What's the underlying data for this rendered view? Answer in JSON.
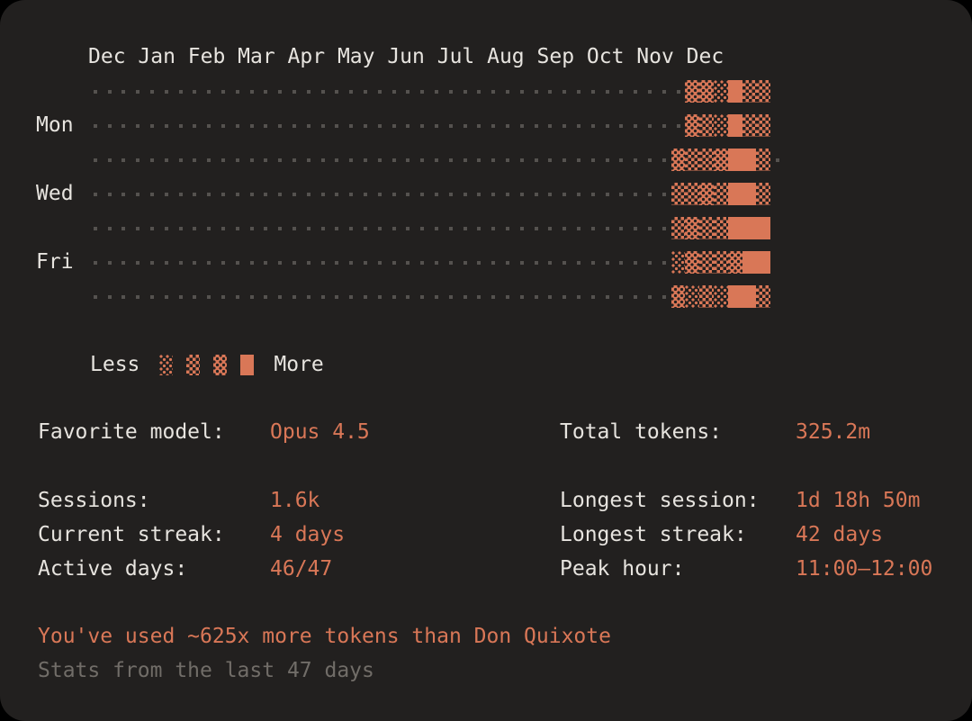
{
  "accent_color": "#d97757",
  "background_color": "#22201f",
  "chart_data": {
    "type": "heatmap",
    "title": "Activity heatmap of last 47 days, terminal-style with shade blocks",
    "month_labels": "Dec Jan Feb Mar Apr May Jun Jul Aug Sep Oct Nov Dec",
    "columns": 48,
    "level_scale": [
      "empty-dot",
      "light",
      "medium",
      "dark",
      "solid"
    ],
    "rows": [
      {
        "label": "",
        "dots": 42,
        "cells": [
          3,
          3,
          1,
          4,
          2,
          2
        ],
        "trailing_dots": 0
      },
      {
        "label": "Mon",
        "dots": 42,
        "cells": [
          3,
          2,
          1,
          4,
          2,
          2
        ],
        "trailing_dots": 0
      },
      {
        "label": "",
        "dots": 41,
        "cells": [
          3,
          2,
          2,
          3,
          4,
          4,
          2
        ],
        "trailing_dots": 1
      },
      {
        "label": "Wed",
        "dots": 41,
        "cells": [
          2,
          2,
          3,
          2,
          4,
          4,
          2
        ],
        "trailing_dots": 0
      },
      {
        "label": "",
        "dots": 41,
        "cells": [
          2,
          3,
          2,
          2,
          4,
          4,
          4
        ],
        "trailing_dots": 0
      },
      {
        "label": "Fri",
        "dots": 41,
        "cells": [
          1,
          3,
          2,
          2,
          3,
          4,
          4
        ],
        "trailing_dots": 0
      },
      {
        "label": "",
        "dots": 41,
        "cells": [
          3,
          1,
          2,
          1,
          4,
          4,
          2
        ],
        "trailing_dots": 0
      }
    ],
    "legend": {
      "less": "Less",
      "more": "More",
      "levels": [
        1,
        2,
        3,
        4
      ],
      "position": "below-left"
    }
  },
  "stats": {
    "rows": [
      {
        "l_label": "Favorite model:",
        "l_value": "Opus 4.5",
        "r_label": "Total tokens:",
        "r_value": "325.2m"
      },
      {
        "l_label": "Sessions:",
        "l_value": "1.6k",
        "r_label": "Longest session:",
        "r_value": "1d 18h 50m"
      },
      {
        "l_label": "Current streak:",
        "l_value": "4 days",
        "r_label": "Longest streak:",
        "r_value": "42 days"
      },
      {
        "l_label": "Active days:",
        "l_value": "46/47",
        "r_label": "Peak hour:",
        "r_value": "11:00–12:00"
      }
    ]
  },
  "footer": {
    "fun_fact": "You've used ~625x more tokens than Don Quixote",
    "caption": "Stats from the last 47 days"
  }
}
